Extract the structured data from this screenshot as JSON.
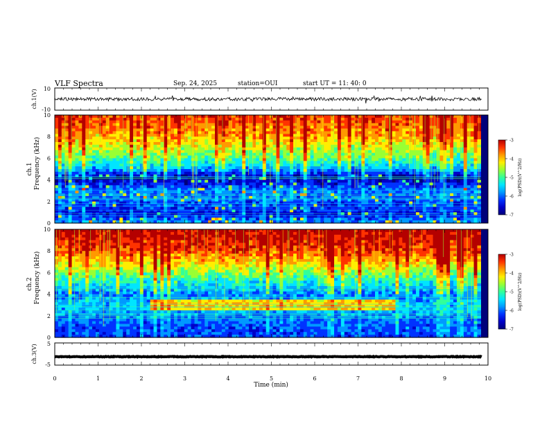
{
  "header": {
    "title": "VLF Spectra",
    "date": "Sep. 24, 2025",
    "station": "station=OUI",
    "start": "start UT =  11: 40: 0"
  },
  "colormap": [
    "#00007a",
    "#0000c8",
    "#0033ff",
    "#0099ff",
    "#00e5ff",
    "#33ff99",
    "#99ff33",
    "#ffee00",
    "#ff9900",
    "#ff3300",
    "#b40000"
  ],
  "chart_data": [
    {
      "id": "ch1-waveform",
      "type": "line",
      "ylabel": "ch.1(V)",
      "ylim": [
        -10,
        10
      ],
      "yticks": [
        10,
        -10
      ],
      "xlim": [
        0,
        10
      ],
      "baseline": 0,
      "amplitude": 1.5
    },
    {
      "id": "ch1-spectrogram",
      "type": "heatmap",
      "ylabel_line1": "ch.1",
      "ylabel_line2": "Frequency (kHz)",
      "xlim": [
        0,
        10
      ],
      "ylim": [
        0,
        10
      ],
      "yticks": [
        "0",
        "2",
        "4",
        "6",
        "8",
        "10"
      ],
      "data_end_min": 9.83,
      "colorbar": {
        "label": "log(PSD)(V^2/Hz)",
        "range": [
          -7,
          -3
        ],
        "ticks": [
          "-3",
          "-4",
          "-5",
          "-6",
          "-7"
        ]
      },
      "profile": [
        [
          0,
          -5.7
        ],
        [
          0.8,
          -6.3
        ],
        [
          2,
          -6.0
        ],
        [
          3,
          -5.8
        ],
        [
          4.2,
          -6.7
        ],
        [
          5,
          -5.6
        ],
        [
          6,
          -4.9
        ],
        [
          7.5,
          -4.2
        ],
        [
          8.5,
          -3.8
        ],
        [
          10,
          -3.5
        ]
      ]
    },
    {
      "id": "ch2-spectrogram",
      "type": "heatmap",
      "ylabel_line1": "ch.2",
      "ylabel_line2": "Frequency (kHz)",
      "xlim": [
        0,
        10
      ],
      "ylim": [
        0,
        10
      ],
      "yticks": [
        "0",
        "2",
        "4",
        "6",
        "8",
        "10"
      ],
      "data_end_min": 9.83,
      "colorbar": {
        "label": "log(PSD)(V^2/Hz)",
        "range": [
          -7,
          -3
        ],
        "ticks": [
          "-3",
          "-4",
          "-5",
          "-6",
          "-7"
        ]
      },
      "profile": [
        [
          0,
          -6.1
        ],
        [
          1,
          -6.0
        ],
        [
          2,
          -5.8
        ],
        [
          3,
          -5.5
        ],
        [
          4,
          -5.8
        ],
        [
          5,
          -5.3
        ],
        [
          6,
          -4.7
        ],
        [
          7,
          -4.1
        ],
        [
          8,
          -3.6
        ],
        [
          9,
          -3.3
        ],
        [
          10,
          -3.1
        ]
      ]
    },
    {
      "id": "ch3-waveform",
      "type": "line",
      "ylabel": "ch.3(V)",
      "ylim": [
        -5,
        5
      ],
      "yticks": [
        5,
        -5
      ],
      "xlim": [
        0,
        10
      ],
      "baseline": -1.2,
      "amplitude": 0.15
    }
  ],
  "xaxis": {
    "label": "Time (min)",
    "ticks": [
      "0",
      "1",
      "2",
      "3",
      "4",
      "5",
      "6",
      "7",
      "8",
      "9",
      "10"
    ]
  }
}
